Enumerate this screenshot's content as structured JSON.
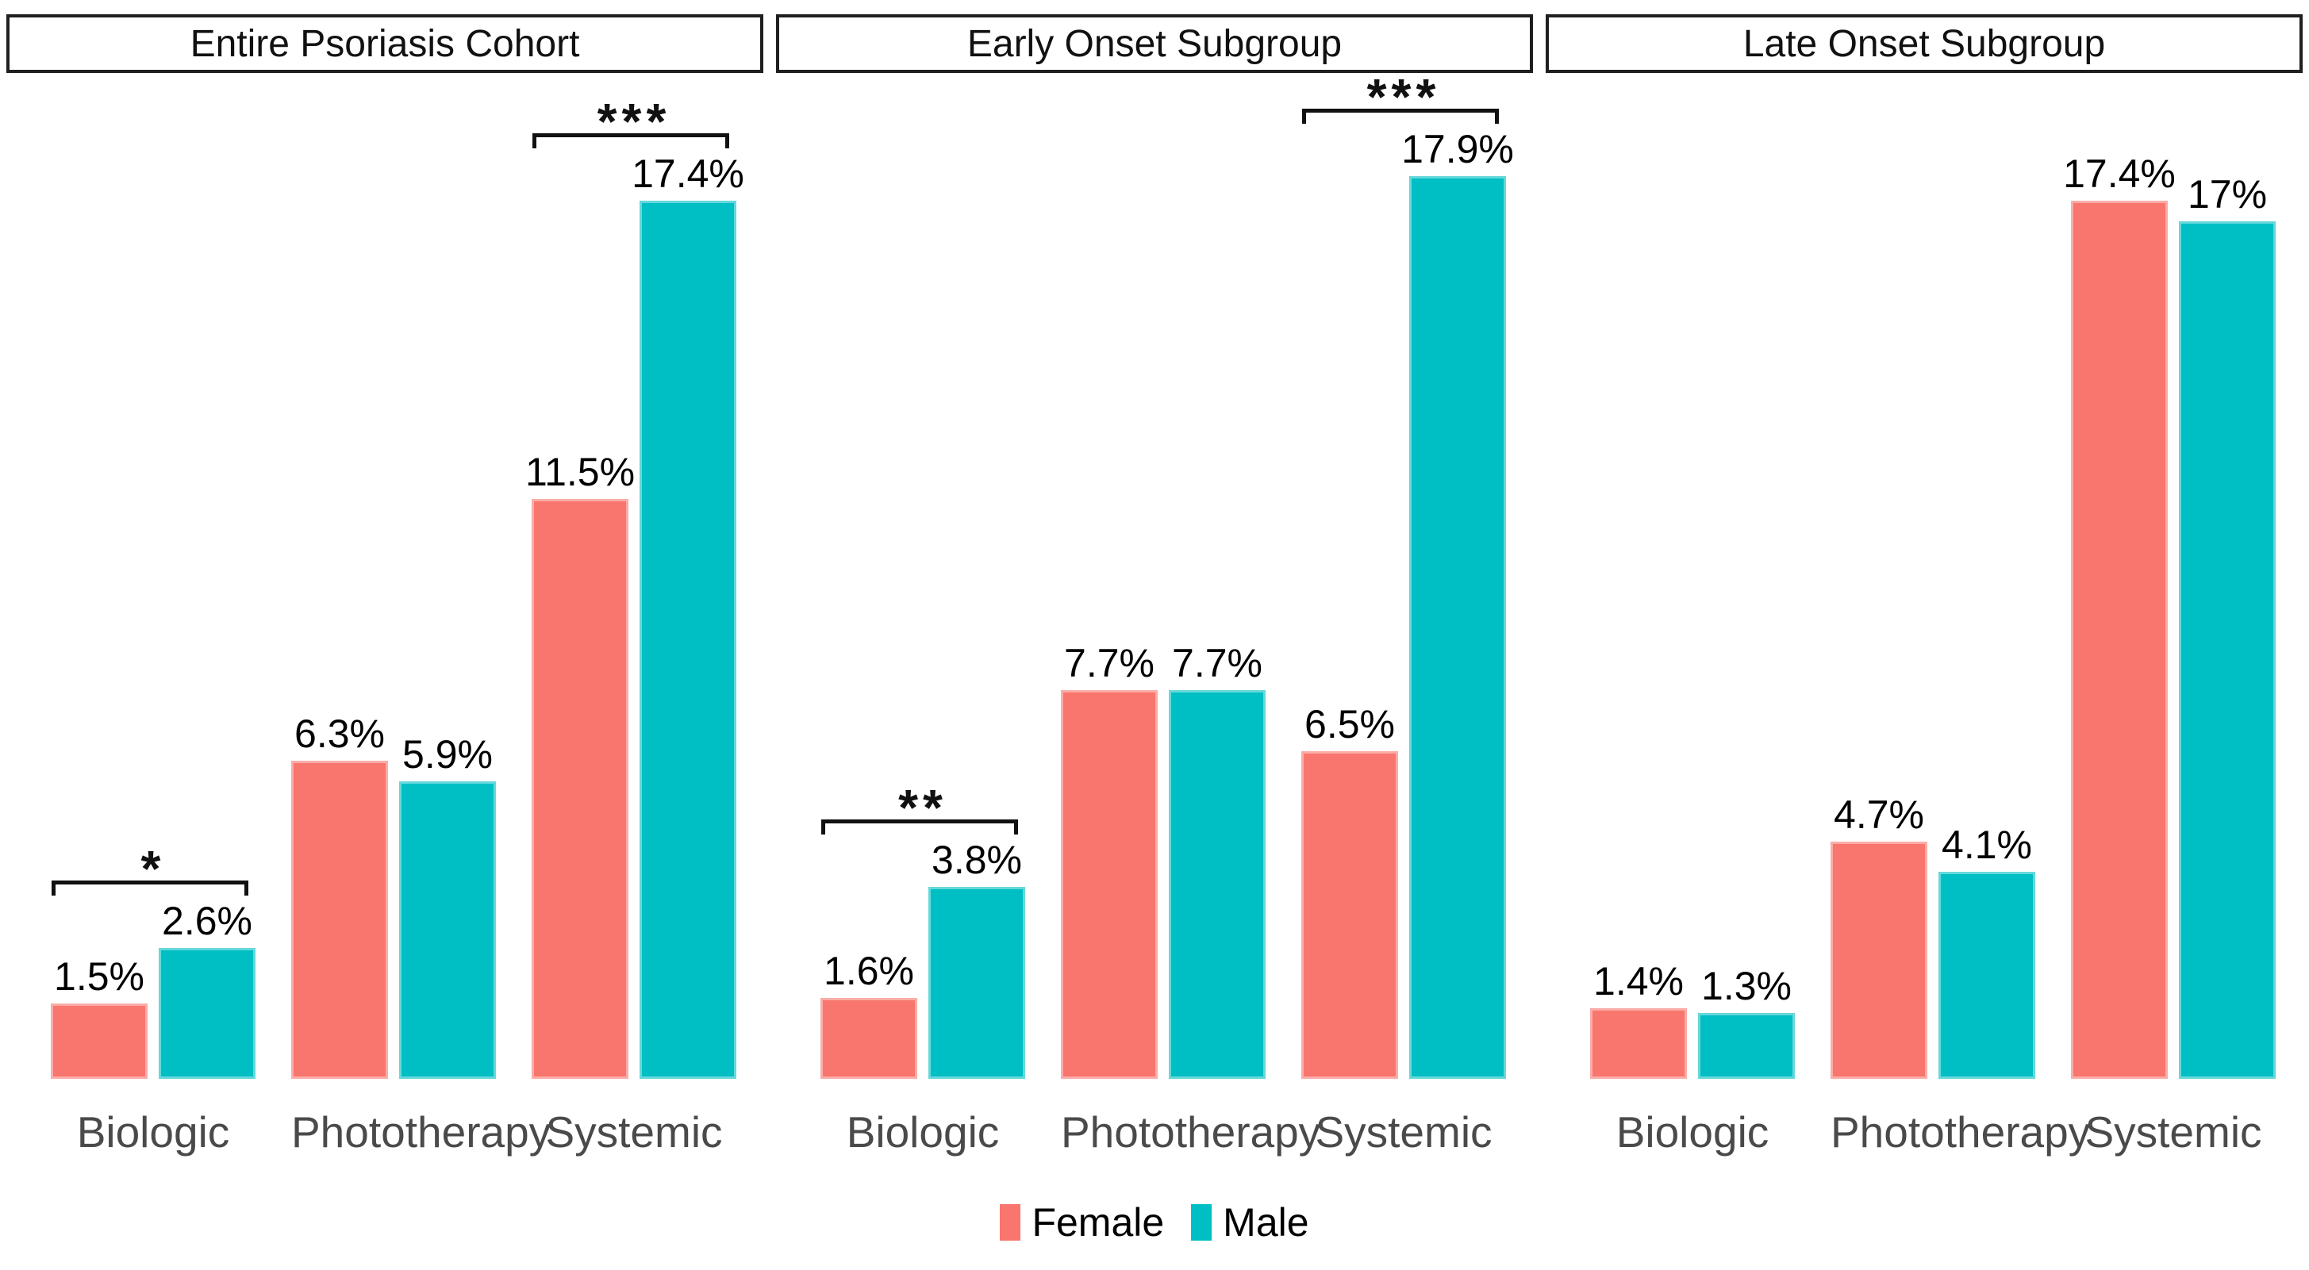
{
  "chart_data": {
    "type": "bar",
    "unit": "%",
    "grid": false,
    "y_axis_shown": false,
    "ylim": [
      0,
      19.8
    ],
    "categories": [
      "Biologic",
      "Phototherapy",
      "Systemic"
    ],
    "series_names": [
      "Female",
      "Male"
    ],
    "colors": {
      "female": "#F8766D",
      "male": "#00BFC4"
    },
    "panels": [
      {
        "title": "Entire Psoriasis Cohort",
        "groups": [
          {
            "category": "Biologic",
            "female": 1.5,
            "male": 2.6,
            "female_label": "1.5%",
            "male_label": "2.6%",
            "significance": "*"
          },
          {
            "category": "Phototherapy",
            "female": 6.3,
            "male": 5.9,
            "female_label": "6.3%",
            "male_label": "5.9%",
            "significance": null
          },
          {
            "category": "Systemic",
            "female": 11.5,
            "male": 17.4,
            "female_label": "11.5%",
            "male_label": "17.4%",
            "significance": "***"
          }
        ]
      },
      {
        "title": "Early Onset Subgroup",
        "groups": [
          {
            "category": "Biologic",
            "female": 1.6,
            "male": 3.8,
            "female_label": "1.6%",
            "male_label": "3.8%",
            "significance": "**"
          },
          {
            "category": "Phototherapy",
            "female": 7.7,
            "male": 7.7,
            "female_label": "7.7%",
            "male_label": "7.7%",
            "significance": null
          },
          {
            "category": "Systemic",
            "female": 6.5,
            "male": 17.9,
            "female_label": "6.5%",
            "male_label": "17.9%",
            "significance": "***"
          }
        ]
      },
      {
        "title": "Late Onset Subgroup",
        "groups": [
          {
            "category": "Biologic",
            "female": 1.4,
            "male": 1.3,
            "female_label": "1.4%",
            "male_label": "1.3%",
            "significance": null
          },
          {
            "category": "Phototherapy",
            "female": 4.7,
            "male": 4.1,
            "female_label": "4.7%",
            "male_label": "4.1%",
            "significance": null
          },
          {
            "category": "Systemic",
            "female": 17.4,
            "male": 17.0,
            "female_label": "17.4%",
            "male_label": "17%",
            "significance": null
          }
        ]
      }
    ],
    "legend": [
      {
        "label": "Female",
        "color": "#F8766D"
      },
      {
        "label": "Male",
        "color": "#00BFC4"
      }
    ]
  }
}
